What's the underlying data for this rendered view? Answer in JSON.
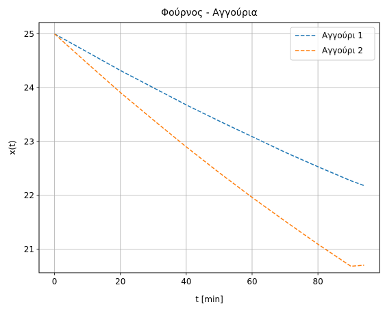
{
  "chart_data": {
    "type": "line",
    "title": "Φούρνος - Αγγούρια",
    "xlabel": "t [min]",
    "ylabel": "x(t)",
    "xlim": [
      -4.7,
      98.7
    ],
    "ylim": [
      20.56,
      25.21
    ],
    "xticks": [
      0,
      20,
      40,
      60,
      80
    ],
    "yticks": [
      21,
      22,
      23,
      24,
      25
    ],
    "grid": true,
    "legend_position": "top-right",
    "series": [
      {
        "name": "Αγγούρι 1",
        "color": "#1f77b4",
        "linestyle": "dashed",
        "x": [
          0,
          10,
          20,
          30,
          40,
          50,
          60,
          70,
          80,
          90,
          94
        ],
        "y": [
          25.0,
          24.66,
          24.32,
          24.0,
          23.68,
          23.38,
          23.09,
          22.8,
          22.53,
          22.27,
          22.18
        ]
      },
      {
        "name": "Αγγούρι 2",
        "color": "#ff7f0e",
        "linestyle": "dashed",
        "x": [
          0,
          10,
          20,
          30,
          40,
          50,
          60,
          70,
          80,
          90,
          94
        ],
        "y": [
          25.0,
          24.45,
          23.91,
          23.4,
          22.9,
          22.42,
          21.96,
          21.52,
          21.09,
          20.68,
          20.7
        ]
      }
    ]
  }
}
